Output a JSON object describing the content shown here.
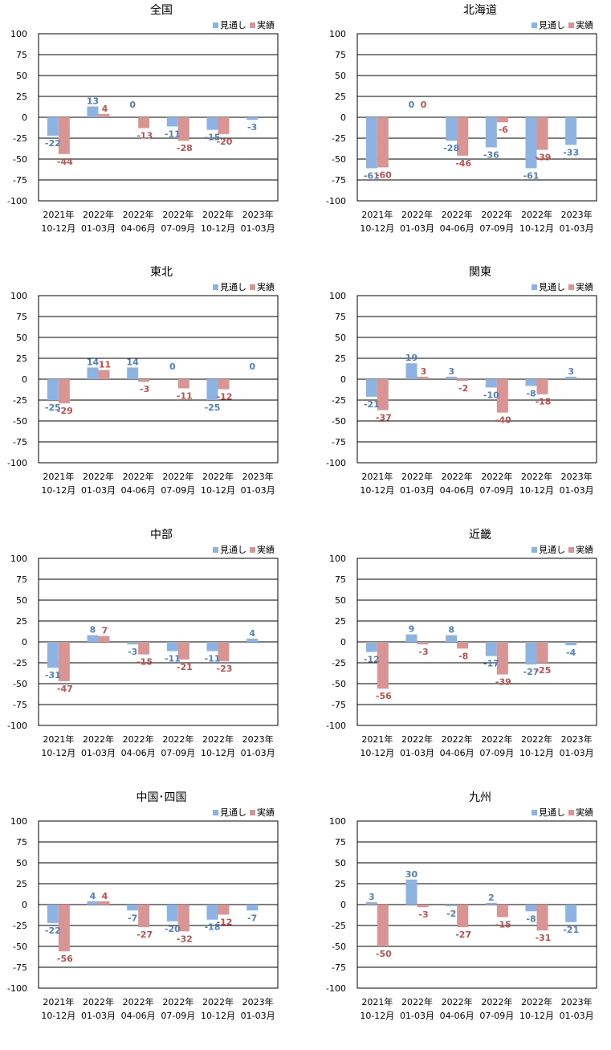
{
  "legend": {
    "forecast_label": "見通し",
    "actual_label": "実績"
  },
  "colors": {
    "forecast": "#8db3e2",
    "actual": "#d99594",
    "forecast_text": "#4f81bd",
    "actual_text": "#c0504d"
  },
  "chart_data": [
    {
      "type": "bar",
      "title": "全国",
      "categories": [
        [
          "2021年",
          "10-12月"
        ],
        [
          "2022年",
          "01-03月"
        ],
        [
          "2022年",
          "04-06月"
        ],
        [
          "2022年",
          "07-09月"
        ],
        [
          "2022年",
          "10-12月"
        ],
        [
          "2023年",
          "01-03月"
        ]
      ],
      "series": [
        {
          "name": "見通し",
          "values": [
            -22,
            13,
            0,
            -11,
            -15,
            -3
          ]
        },
        {
          "name": "実績",
          "values": [
            -44,
            4,
            -13,
            -28,
            -20,
            null
          ]
        }
      ],
      "ylim": [
        -100,
        100
      ],
      "yticks": [
        100,
        75,
        50,
        25,
        0,
        -25,
        -50,
        -75,
        -100
      ],
      "grid": true,
      "legend_position": "top-right"
    },
    {
      "type": "bar",
      "title": "北海道",
      "categories": [
        [
          "2021年",
          "10-12月"
        ],
        [
          "2022年",
          "01-03月"
        ],
        [
          "2022年",
          "04-06月"
        ],
        [
          "2022年",
          "07-09月"
        ],
        [
          "2022年",
          "10-12月"
        ],
        [
          "2023年",
          "01-03月"
        ]
      ],
      "series": [
        {
          "name": "見通し",
          "values": [
            -61,
            0,
            -28,
            -36,
            -61,
            -33
          ]
        },
        {
          "name": "実績",
          "values": [
            -60,
            0,
            -46,
            -6,
            -39,
            null
          ]
        }
      ],
      "ylim": [
        -100,
        100
      ],
      "yticks": [
        100,
        75,
        50,
        25,
        0,
        -25,
        -50,
        -75,
        -100
      ],
      "grid": true,
      "legend_position": "top-right"
    },
    {
      "type": "bar",
      "title": "東北",
      "categories": [
        [
          "2021年",
          "10-12月"
        ],
        [
          "2022年",
          "01-03月"
        ],
        [
          "2022年",
          "04-06月"
        ],
        [
          "2022年",
          "07-09月"
        ],
        [
          "2022年",
          "10-12月"
        ],
        [
          "2023年",
          "01-03月"
        ]
      ],
      "series": [
        {
          "name": "見通し",
          "values": [
            -25,
            14,
            14,
            0,
            -25,
            0
          ]
        },
        {
          "name": "実績",
          "values": [
            -29,
            11,
            -3,
            -11,
            -12,
            null
          ]
        }
      ],
      "ylim": [
        -100,
        100
      ],
      "yticks": [
        100,
        75,
        50,
        25,
        0,
        -25,
        -50,
        -75,
        -100
      ],
      "grid": true,
      "legend_position": "top-right"
    },
    {
      "type": "bar",
      "title": "関東",
      "categories": [
        [
          "2021年",
          "10-12月"
        ],
        [
          "2022年",
          "01-03月"
        ],
        [
          "2022年",
          "04-06月"
        ],
        [
          "2022年",
          "07-09月"
        ],
        [
          "2022年",
          "10-12月"
        ],
        [
          "2023年",
          "01-03月"
        ]
      ],
      "series": [
        {
          "name": "見通し",
          "values": [
            -21,
            19,
            3,
            -10,
            -8,
            3
          ]
        },
        {
          "name": "実績",
          "values": [
            -37,
            3,
            -2,
            -40,
            -18,
            null
          ]
        }
      ],
      "ylim": [
        -100,
        100
      ],
      "yticks": [
        100,
        75,
        50,
        25,
        0,
        -25,
        -50,
        -75,
        -100
      ],
      "grid": true,
      "legend_position": "top-right"
    },
    {
      "type": "bar",
      "title": "中部",
      "categories": [
        [
          "2021年",
          "10-12月"
        ],
        [
          "2022年",
          "01-03月"
        ],
        [
          "2022年",
          "04-06月"
        ],
        [
          "2022年",
          "07-09月"
        ],
        [
          "2022年",
          "10-12月"
        ],
        [
          "2023年",
          "01-03月"
        ]
      ],
      "series": [
        {
          "name": "見通し",
          "values": [
            -31,
            8,
            -3,
            -11,
            -11,
            4
          ]
        },
        {
          "name": "実績",
          "values": [
            -47,
            7,
            -15,
            -21,
            -23,
            null
          ]
        }
      ],
      "ylim": [
        -100,
        100
      ],
      "yticks": [
        100,
        75,
        50,
        25,
        0,
        -25,
        -50,
        -75,
        -100
      ],
      "grid": true,
      "legend_position": "top-right"
    },
    {
      "type": "bar",
      "title": "近畿",
      "categories": [
        [
          "2021年",
          "10-12月"
        ],
        [
          "2022年",
          "01-03月"
        ],
        [
          "2022年",
          "04-06月"
        ],
        [
          "2022年",
          "07-09月"
        ],
        [
          "2022年",
          "10-12月"
        ],
        [
          "2023年",
          "01-03月"
        ]
      ],
      "series": [
        {
          "name": "見通し",
          "values": [
            -12,
            9,
            8,
            -17,
            -27,
            -4
          ]
        },
        {
          "name": "実績",
          "values": [
            -56,
            -3,
            -8,
            -39,
            -25,
            null
          ]
        }
      ],
      "ylim": [
        -100,
        100
      ],
      "yticks": [
        100,
        75,
        50,
        25,
        0,
        -25,
        -50,
        -75,
        -100
      ],
      "grid": true,
      "legend_position": "top-right"
    },
    {
      "type": "bar",
      "title": "中国･四国",
      "categories": [
        [
          "2021年",
          "10-12月"
        ],
        [
          "2022年",
          "01-03月"
        ],
        [
          "2022年",
          "04-06月"
        ],
        [
          "2022年",
          "07-09月"
        ],
        [
          "2022年",
          "10-12月"
        ],
        [
          "2023年",
          "01-03月"
        ]
      ],
      "series": [
        {
          "name": "見通し",
          "values": [
            -22,
            4,
            -7,
            -20,
            -18,
            -7
          ]
        },
        {
          "name": "実績",
          "values": [
            -56,
            4,
            -27,
            -32,
            -12,
            null
          ]
        }
      ],
      "ylim": [
        -100,
        100
      ],
      "yticks": [
        100,
        75,
        50,
        25,
        0,
        -25,
        -50,
        -75,
        -100
      ],
      "grid": true,
      "legend_position": "top-right"
    },
    {
      "type": "bar",
      "title": "九州",
      "categories": [
        [
          "2021年",
          "10-12月"
        ],
        [
          "2022年",
          "01-03月"
        ],
        [
          "2022年",
          "04-06月"
        ],
        [
          "2022年",
          "07-09月"
        ],
        [
          "2022年",
          "10-12月"
        ],
        [
          "2023年",
          "01-03月"
        ]
      ],
      "series": [
        {
          "name": "見通し",
          "values": [
            3,
            30,
            -2,
            2,
            -8,
            -21
          ]
        },
        {
          "name": "実績",
          "values": [
            -50,
            -3,
            -27,
            -15,
            -31,
            null
          ]
        }
      ],
      "ylim": [
        -100,
        100
      ],
      "yticks": [
        100,
        75,
        50,
        25,
        0,
        -25,
        -50,
        -75,
        -100
      ],
      "grid": true,
      "legend_position": "top-right"
    }
  ]
}
